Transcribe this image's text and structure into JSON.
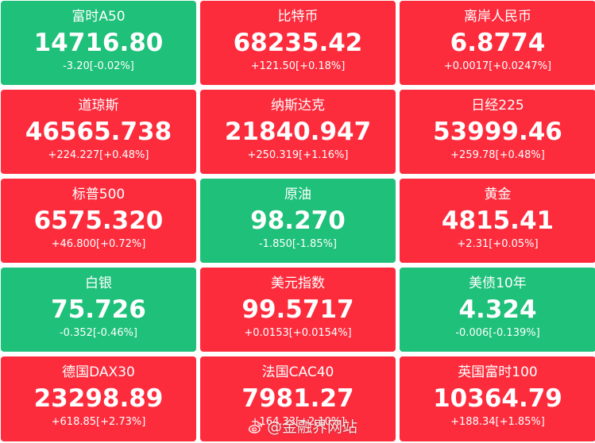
{
  "colors": {
    "up": "#fc2c3d",
    "down": "#1ec07a"
  },
  "tiles": [
    {
      "name": "富时A50",
      "price": "14716.80",
      "change": "-3.20[-0.02%]",
      "trend": "down"
    },
    {
      "name": "比特币",
      "price": "68235.42",
      "change": "+121.50[+0.18%]",
      "trend": "up"
    },
    {
      "name": "离岸人民币",
      "price": "6.8774",
      "change": "+0.0017[+0.0247%]",
      "trend": "up"
    },
    {
      "name": "道琼斯",
      "price": "46565.738",
      "change": "+224.227[+0.48%]",
      "trend": "up"
    },
    {
      "name": "纳斯达克",
      "price": "21840.947",
      "change": "+250.319[+1.16%]",
      "trend": "up"
    },
    {
      "name": "日经225",
      "price": "53999.46",
      "change": "+259.78[+0.48%]",
      "trend": "up"
    },
    {
      "name": "标普500",
      "price": "6575.320",
      "change": "+46.800[+0.72%]",
      "trend": "up"
    },
    {
      "name": "原油",
      "price": "98.270",
      "change": "-1.850[-1.85%]",
      "trend": "down"
    },
    {
      "name": "黄金",
      "price": "4815.41",
      "change": "+2.31[+0.05%]",
      "trend": "up"
    },
    {
      "name": "白银",
      "price": "75.726",
      "change": "-0.352[-0.46%]",
      "trend": "down"
    },
    {
      "name": "美元指数",
      "price": "99.5717",
      "change": "+0.0153[+0.0154%]",
      "trend": "up"
    },
    {
      "name": "美债10年",
      "price": "4.324",
      "change": "-0.006[-0.139%]",
      "trend": "down"
    },
    {
      "name": "德国DAX30",
      "price": "23298.89",
      "change": "+618.85[+2.73%]",
      "trend": "up"
    },
    {
      "name": "法国CAC40",
      "price": "7981.27",
      "change": "+164.33[+2.10%]",
      "trend": "up"
    },
    {
      "name": "英国富时100",
      "price": "10364.79",
      "change": "+188.34[+1.85%]",
      "trend": "up"
    }
  ],
  "watermark": {
    "text": "@金融界网站",
    "icon": "weibo-icon"
  }
}
